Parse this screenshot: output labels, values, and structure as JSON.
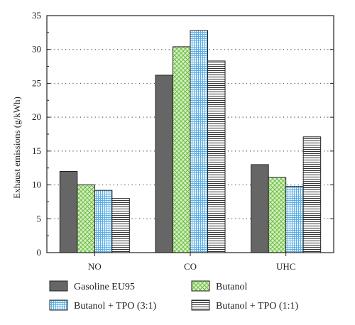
{
  "chart_data": {
    "type": "bar",
    "title": "",
    "xlabel": "",
    "ylabel": "Exhaust emissions (g/kWh)",
    "ylim": [
      0,
      35
    ],
    "yticks": [
      0,
      5,
      10,
      15,
      20,
      25,
      30,
      35
    ],
    "grid": "dotted horizontal",
    "legend_position": "bottom",
    "categories": [
      "NO",
      "CO",
      "UHC"
    ],
    "series": [
      {
        "name": "Gasoline EU95",
        "values": [
          12.0,
          26.2,
          13.0
        ],
        "color": "#666666",
        "pattern": "solid"
      },
      {
        "name": "Butanol",
        "values": [
          10.0,
          30.4,
          11.1
        ],
        "color": "#7fc45a",
        "pattern": "crosshatch"
      },
      {
        "name": "Butanol + TPO (3:1)",
        "values": [
          9.2,
          32.8,
          9.8
        ],
        "color": "#6fb6e6",
        "pattern": "grid"
      },
      {
        "name": "Butanol + TPO (1:1)",
        "values": [
          8.0,
          28.3,
          17.1
        ],
        "color": "#444444",
        "pattern": "horizontal-lines"
      }
    ]
  }
}
